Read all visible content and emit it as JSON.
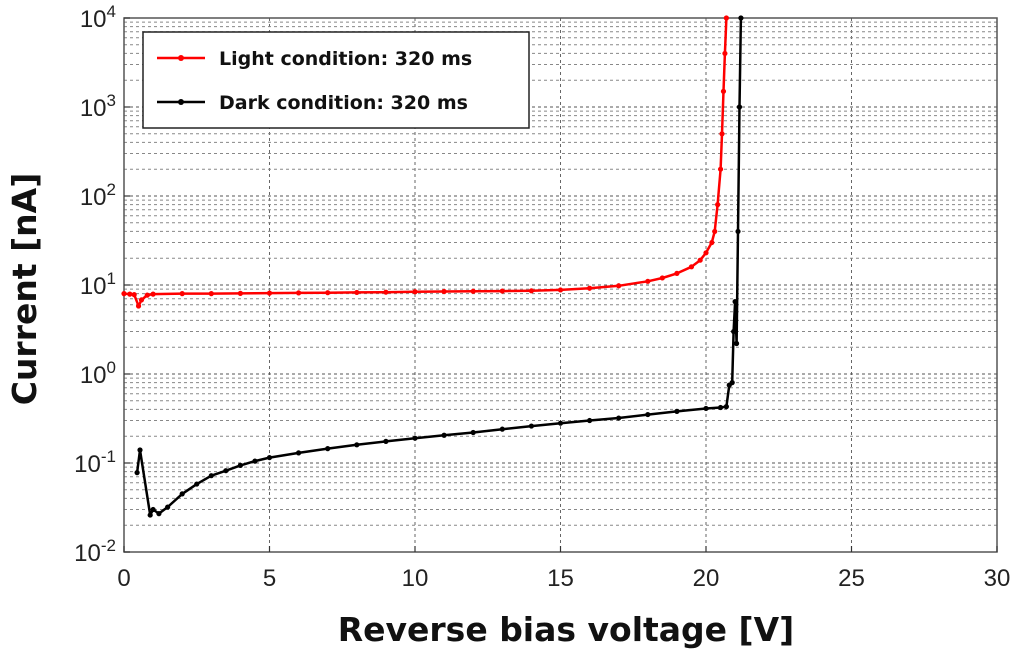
{
  "chart_data": {
    "type": "line",
    "title": "",
    "xlabel": "Reverse bias voltage [V]",
    "ylabel": "Current [nA]",
    "xlim": [
      0,
      30
    ],
    "ylim": [
      0.01,
      10000
    ],
    "yscale": "log",
    "grid": true,
    "legend_position": "top-left",
    "x_ticks": [
      "0",
      "5",
      "10",
      "15",
      "20",
      "25",
      "30"
    ],
    "y_ticks": [
      {
        "base": "10",
        "exp": "-2"
      },
      {
        "base": "10",
        "exp": "-1"
      },
      {
        "base": "10",
        "exp": "0"
      },
      {
        "base": "10",
        "exp": "1"
      },
      {
        "base": "10",
        "exp": "2"
      },
      {
        "base": "10",
        "exp": "3"
      },
      {
        "base": "10",
        "exp": "4"
      }
    ],
    "series": [
      {
        "name": "Light condition: 320 ms",
        "color": "#ff0000",
        "x": [
          0.0,
          0.2,
          0.35,
          0.5,
          0.6,
          0.8,
          1.0,
          2.0,
          3.0,
          4.0,
          5.0,
          6.0,
          7.0,
          8.0,
          9.0,
          10.0,
          11.0,
          12.0,
          13.0,
          14.0,
          15.0,
          16.0,
          17.0,
          18.0,
          18.5,
          19.0,
          19.5,
          19.8,
          20.0,
          20.2,
          20.3,
          20.4,
          20.5,
          20.55,
          20.6,
          20.65,
          20.7
        ],
        "y": [
          8.0,
          7.9,
          7.8,
          5.8,
          6.8,
          7.7,
          7.9,
          8.0,
          8.0,
          8.05,
          8.1,
          8.15,
          8.2,
          8.25,
          8.3,
          8.4,
          8.45,
          8.5,
          8.55,
          8.6,
          8.8,
          9.2,
          9.8,
          11.0,
          12.0,
          13.5,
          16.0,
          19.0,
          23.0,
          30.0,
          40.0,
          80.0,
          200.0,
          500.0,
          1500.0,
          4000.0,
          10000.0
        ]
      },
      {
        "name": "Dark condition: 320 ms",
        "color": "#000000",
        "x": [
          0.45,
          0.55,
          0.9,
          1.0,
          1.2,
          1.5,
          2.0,
          2.5,
          3.0,
          3.5,
          4.0,
          4.5,
          5.0,
          6.0,
          7.0,
          8.0,
          9.0,
          10.0,
          11.0,
          12.0,
          13.0,
          14.0,
          15.0,
          16.0,
          17.0,
          18.0,
          19.0,
          20.0,
          20.5,
          20.7,
          20.8,
          20.9,
          20.95,
          21.0,
          21.05,
          21.1,
          21.15,
          21.2
        ],
        "y": [
          0.078,
          0.14,
          0.026,
          0.03,
          0.027,
          0.032,
          0.045,
          0.058,
          0.072,
          0.082,
          0.094,
          0.105,
          0.115,
          0.13,
          0.145,
          0.16,
          0.175,
          0.19,
          0.205,
          0.22,
          0.24,
          0.26,
          0.28,
          0.3,
          0.32,
          0.35,
          0.38,
          0.41,
          0.42,
          0.43,
          0.75,
          0.8,
          3.0,
          6.5,
          2.2,
          40.0,
          1000.0,
          10000.0
        ]
      }
    ]
  }
}
